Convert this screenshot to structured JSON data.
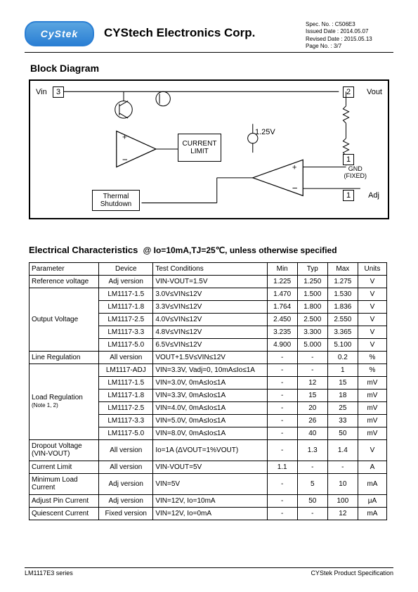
{
  "header": {
    "logo_text": "CyStek",
    "company": "CYStech Electronics Corp.",
    "spec_no": "Spec. No. : C506E3",
    "issued": "Issued Date : 2014.05.07",
    "revised": "Revised Date :  2015.05.13",
    "page_no": "Page No. : 3/7"
  },
  "block_diagram": {
    "title": "Block Diagram",
    "vin": "Vin",
    "pin3": "3",
    "pin2": "2",
    "pin1": "1",
    "vout": "Vout",
    "current_limit": "CURRENT\nLIMIT",
    "thermal": "Thermal\nShutdown",
    "v125": "1.25V",
    "gnd": "GND\n(FIXED)",
    "adj": "Adj"
  },
  "ec": {
    "heading": "Electrical Characteristics",
    "cond": "@ Io=10mA,TJ=25℃, unless otherwise specified",
    "headers": {
      "param": "Parameter",
      "device": "Device",
      "tc": "Test Conditions",
      "min": "Min",
      "typ": "Typ",
      "max": "Max",
      "units": "Units"
    },
    "rows": [
      {
        "param": "Reference voltage",
        "device": "Adj version",
        "tc": "VIN-VOUT=1.5V",
        "min": "1.225",
        "typ": "1.250",
        "max": "1.275",
        "unit": "V",
        "rowspan": 1
      },
      {
        "param": "Output Voltage",
        "device": "LM1117-1.5",
        "tc": "3.0V≤VIN≤12V",
        "min": "1.470",
        "typ": "1.500",
        "max": "1.530",
        "unit": "V",
        "rowspan": 5
      },
      {
        "device": "LM1117-1.8",
        "tc": "3.3V≤VIN≤12V",
        "min": "1.764",
        "typ": "1.800",
        "max": "1.836",
        "unit": "V"
      },
      {
        "device": "LM1117-2.5",
        "tc": "4.0V≤VIN≤12V",
        "min": "2.450",
        "typ": "2.500",
        "max": "2.550",
        "unit": "V"
      },
      {
        "device": "LM1117-3.3",
        "tc": "4.8V≤VIN≤12V",
        "min": "3.235",
        "typ": "3.300",
        "max": "3.365",
        "unit": "V"
      },
      {
        "device": "LM1117-5.0",
        "tc": "6.5V≤VIN≤12V",
        "min": "4.900",
        "typ": "5.000",
        "max": "5.100",
        "unit": "V"
      },
      {
        "param": "Line Regulation",
        "device": "All version",
        "tc": "VOUT+1.5V≤VIN≤12V",
        "min": "-",
        "typ": "-",
        "max": "0.2",
        "unit": "%",
        "rowspan": 1
      },
      {
        "param": "Load Regulation",
        "note": "(Note 1, 2)",
        "device": "LM1117-ADJ",
        "tc": "VIN=3.3V, Vadj=0, 10mA≤Io≤1A",
        "min": "-",
        "typ": "-",
        "max": "1",
        "unit": "%",
        "rowspan": 6
      },
      {
        "device": "LM1117-1.5",
        "tc": "VIN=3.0V, 0mA≤Io≤1A",
        "min": "-",
        "typ": "12",
        "max": "15",
        "unit": "mV"
      },
      {
        "device": "LM1117-1.8",
        "tc": "VIN=3.3V, 0mA≤Io≤1A",
        "min": "-",
        "typ": "15",
        "max": "18",
        "unit": "mV"
      },
      {
        "device": "LM1117-2.5",
        "tc": "VIN=4.0V, 0mA≤Io≤1A",
        "min": "-",
        "typ": "20",
        "max": "25",
        "unit": "mV"
      },
      {
        "device": "LM1117-3.3",
        "tc": "VIN=5.0V, 0mA≤Io≤1A",
        "min": "-",
        "typ": "26",
        "max": "33",
        "unit": "mV"
      },
      {
        "device": "LM1117-5.0",
        "tc": "VIN=8.0V, 0mA≤Io≤1A",
        "min": "-",
        "typ": "40",
        "max": "50",
        "unit": "mV"
      },
      {
        "param": "Dropout Voltage\n(VIN-VOUT)",
        "device": "All version",
        "tc": "Io=1A (ΔVOUT=1%VOUT)",
        "min": "-",
        "typ": "1.3",
        "max": "1.4",
        "unit": "V",
        "rowspan": 1,
        "tall": true
      },
      {
        "param": "Current Limit",
        "device": "All version",
        "tc": "VIN-VOUT=5V",
        "min": "1.1",
        "typ": "-",
        "max": "-",
        "unit": "A",
        "rowspan": 1
      },
      {
        "param": "Minimum Load\nCurrent",
        "device": "Adj version",
        "tc": "VIN=5V",
        "min": "-",
        "typ": "5",
        "max": "10",
        "unit": "mA",
        "rowspan": 1,
        "tall": true
      },
      {
        "param": "Adjust Pin Current",
        "device": "Adj version",
        "tc": "VIN=12V, Io=10mA",
        "min": "-",
        "typ": "50",
        "max": "100",
        "unit": "μA",
        "rowspan": 1
      },
      {
        "param": "Quiescent Current",
        "device": "Fixed version",
        "tc": "VIN=12V, Io=0mA",
        "min": "-",
        "typ": "-",
        "max": "12",
        "unit": "mA",
        "rowspan": 1
      }
    ]
  },
  "footer": {
    "left": "LM1117E3 series",
    "right": "CYStek Product Specification"
  }
}
